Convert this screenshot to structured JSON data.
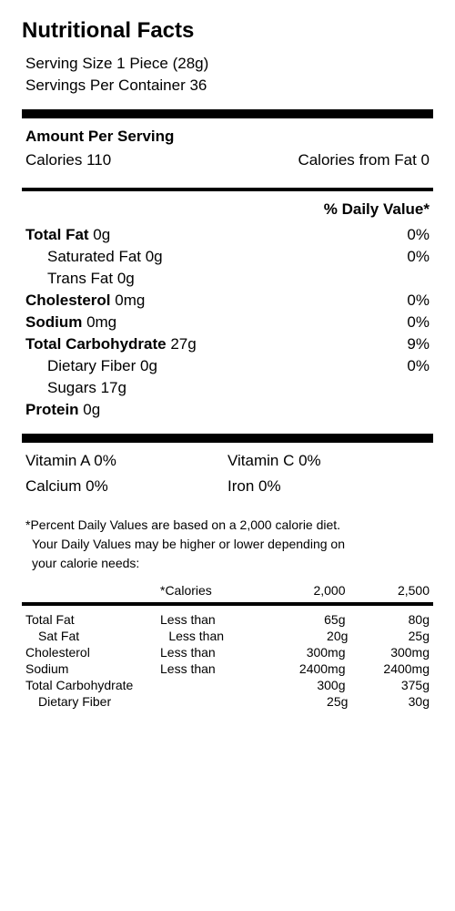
{
  "title": "Nutritional Facts",
  "serving": {
    "size": "Serving Size 1 Piece (28g)",
    "per_container": "Servings Per Container 36"
  },
  "amount_heading": "Amount Per Serving",
  "calories": {
    "label": "Calories 110",
    "from_fat": "Calories from Fat 0"
  },
  "dv_heading": "% Daily Value*",
  "nutrients": [
    {
      "label_bold": "Total Fat",
      "value": " 0g",
      "pct": "0%",
      "indent": false
    },
    {
      "label_bold": "",
      "value": "Saturated Fat 0g",
      "pct": "0%",
      "indent": true
    },
    {
      "label_bold": "",
      "value": "Trans Fat 0g",
      "pct": "",
      "indent": true
    },
    {
      "label_bold": "Cholesterol",
      "value": " 0mg",
      "pct": "0%",
      "indent": false
    },
    {
      "label_bold": "Sodium",
      "value": " 0mg",
      "pct": "0%",
      "indent": false
    },
    {
      "label_bold": "Total Carbohydrate",
      "value": " 27g",
      "pct": "9%",
      "indent": false
    },
    {
      "label_bold": "",
      "value": "Dietary Fiber 0g",
      "pct": "0%",
      "indent": true
    },
    {
      "label_bold": "",
      "value": "Sugars 17g",
      "pct": "",
      "indent": true
    },
    {
      "label_bold": "Protein",
      "value": " 0g",
      "pct": "",
      "indent": false
    }
  ],
  "vitamins": {
    "a": "Vitamin A 0%",
    "c": "Vitamin C 0%",
    "calcium": "Calcium 0%",
    "iron": "Iron 0%"
  },
  "footnote": {
    "line1": "*Percent Daily Values are based on a 2,000 calorie diet.",
    "line2": "Your Daily Values may be higher or lower depending on",
    "line3": "your calorie needs:"
  },
  "ref": {
    "header": {
      "c2": "*Calories",
      "c3": "2,000",
      "c4": "2,500"
    },
    "rows": [
      {
        "c1": "Total Fat",
        "c2": "Less than",
        "c3": "65g",
        "c4": "80g",
        "indent": false
      },
      {
        "c1": "Sat Fat",
        "c2": "Less than",
        "c3": "20g",
        "c4": "25g",
        "indent": true
      },
      {
        "c1": "Cholesterol",
        "c2": "Less than",
        "c3": "300mg",
        "c4": "300mg",
        "indent": false
      },
      {
        "c1": "Sodium",
        "c2": "Less than",
        "c3": "2400mg",
        "c4": "2400mg",
        "indent": false
      },
      {
        "c1": "Total Carbohydrate",
        "c2": "",
        "c3": "300g",
        "c4": "375g",
        "indent": false
      },
      {
        "c1": "Dietary Fiber",
        "c2": "",
        "c3": "25g",
        "c4": "30g",
        "indent": true
      }
    ]
  }
}
